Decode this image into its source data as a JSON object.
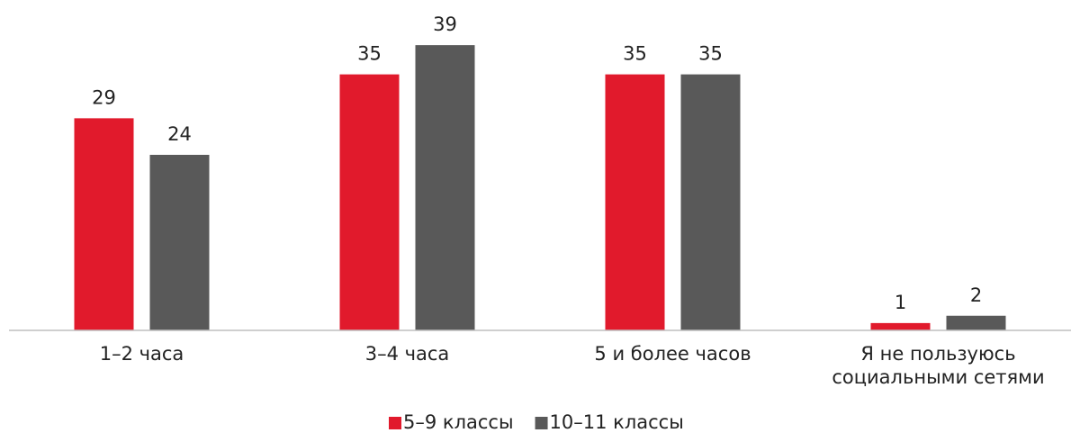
{
  "chart_data": {
    "type": "bar",
    "categories": [
      "1–2 часа",
      "3–4 часа",
      "5 и более часов",
      "Я не пользуюсь социальными сетями"
    ],
    "series": [
      {
        "name": "5–9 классы",
        "color": "#e11a2c",
        "values": [
          29,
          35,
          35,
          1
        ]
      },
      {
        "name": "10–11 классы",
        "color": "#595959",
        "values": [
          24,
          39,
          35,
          2
        ]
      }
    ],
    "ylim": [
      0,
      40
    ],
    "grid": false,
    "legend": "bottom"
  }
}
